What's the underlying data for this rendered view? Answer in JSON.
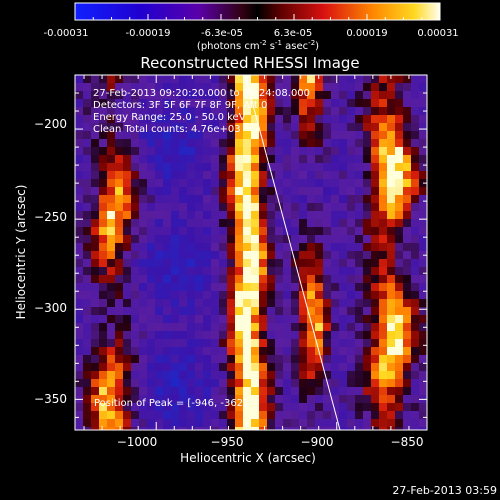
{
  "colorbar": {
    "ticks": [
      "-0.00031",
      "-0.00019",
      "-6.3e-05",
      "6.3e-05",
      "0.00019",
      "0.00031"
    ],
    "units_main": "(photons cm",
    "units_sup1": "-2",
    "units_mid": " s",
    "units_sup2": "-1",
    "units_end": " asec",
    "units_sup3": "-2",
    "units_close": ")"
  },
  "title": "Reconstructed RHESSI Image",
  "info": {
    "line1": "27-Feb-2013 09:20:20.000 to 09:24:08.000",
    "line2": "Detectors: 3F 5F 6F 7F 8F 9F, Att 0",
    "line3": "Energy Range: 25.0 - 50.0 keV",
    "line4": "Clean     Total counts: 4.76e+03"
  },
  "peak_label": "Position of Peak = [-946, -362]",
  "x_axis": {
    "label": "Heliocentric X (arcsec)",
    "ticks": [
      -1000,
      -950,
      -900,
      -850
    ],
    "tick_labels": [
      "−1000",
      "−950",
      "−900",
      "−850"
    ],
    "range": [
      -1045,
      -850
    ]
  },
  "y_axis": {
    "label": "Heliocentric Y (arcsec)",
    "ticks": [
      -350,
      -300,
      -250,
      -200
    ],
    "tick_labels": [
      "−350",
      "−300",
      "−250",
      "−200"
    ],
    "range": [
      -367,
      -170
    ]
  },
  "timestamp": "27-Feb-2013 03:59",
  "colors": {
    "frame": "#ffffff",
    "limb_line": "#ffffff"
  }
}
